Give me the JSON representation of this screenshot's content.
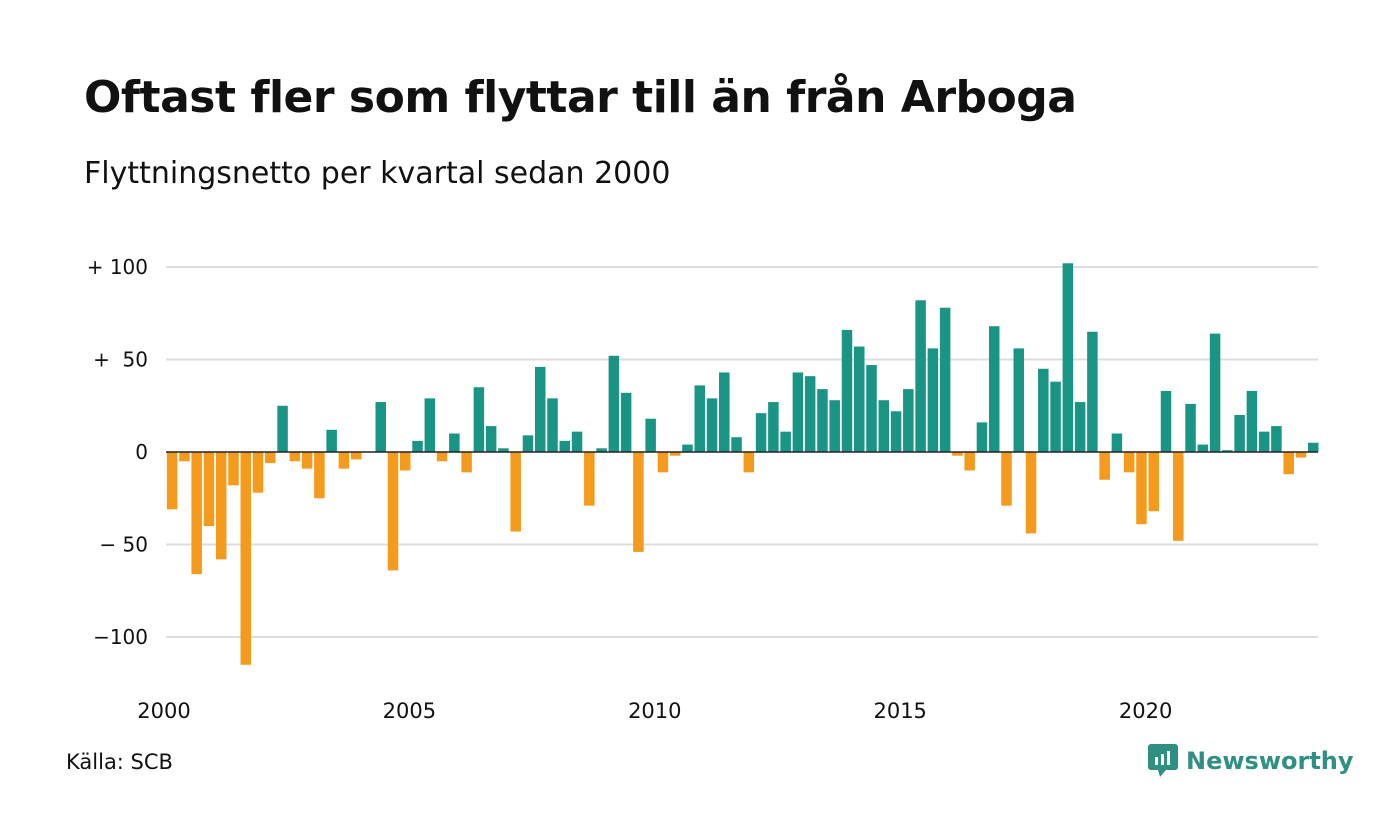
{
  "title": "Oftast fler som flyttar till än från Arboga",
  "subtitle": "Flyttningsnetto per kvartal sedan 2000",
  "source": "Källa: SCB",
  "brand": {
    "name": "Newsworthy",
    "icon": "newsworthy-logo-icon"
  },
  "colors": {
    "positive": "#1a9484",
    "negative": "#f49a1c",
    "grid": "#dddddd",
    "zero": "#222222"
  },
  "chart_data": {
    "type": "bar",
    "title": "Oftast fler som flyttar till än från Arboga",
    "subtitle": "Flyttningsnetto per kvartal sedan 2000",
    "xlabel": "",
    "ylabel": "",
    "ylim": [
      -120,
      105
    ],
    "y_ticks": [
      100,
      50,
      0,
      -50,
      -100
    ],
    "y_tick_labels": [
      "+ 100",
      "+  50",
      "0",
      "− 50",
      "−100"
    ],
    "x_ticks": [
      2000,
      2005,
      2010,
      2015,
      2020
    ],
    "x_tick_labels": [
      "2000",
      "2005",
      "2010",
      "2015",
      "2020"
    ],
    "grid": true,
    "x_start": "2000 Q1",
    "quarters_per_year": 4,
    "values": [
      -31,
      -5,
      -66,
      -40,
      -58,
      -18,
      -115,
      -22,
      -6,
      25,
      -5,
      -9,
      -25,
      12,
      -9,
      -4,
      0,
      27,
      -64,
      -10,
      6,
      29,
      -5,
      10,
      -11,
      35,
      14,
      2,
      -43,
      9,
      46,
      29,
      6,
      11,
      -29,
      2,
      52,
      32,
      -54,
      18,
      -11,
      -2,
      4,
      36,
      29,
      43,
      8,
      -11,
      21,
      27,
      11,
      43,
      41,
      34,
      28,
      66,
      57,
      47,
      28,
      22,
      34,
      82,
      56,
      78,
      -2,
      -10,
      16,
      68,
      -29,
      56,
      -44,
      45,
      38,
      102,
      27,
      65,
      -15,
      10,
      -11,
      -39,
      -32,
      33,
      -48,
      26,
      4,
      64,
      1,
      20,
      33,
      11,
      14,
      -12,
      -3,
      5
    ]
  }
}
